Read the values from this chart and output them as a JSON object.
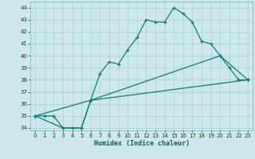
{
  "title": "",
  "xlabel": "Humidex (Indice chaleur)",
  "background_color": "#cce8ea",
  "grid_color": "#aacfd2",
  "line_color": "#1a7872",
  "ylim": [
    33.8,
    44.5
  ],
  "xlim": [
    -0.5,
    23.5
  ],
  "yticks": [
    34,
    35,
    36,
    37,
    38,
    39,
    40,
    41,
    42,
    43,
    44
  ],
  "xticks": [
    0,
    1,
    2,
    3,
    4,
    5,
    6,
    7,
    8,
    9,
    10,
    11,
    12,
    13,
    14,
    15,
    16,
    17,
    18,
    19,
    20,
    21,
    22,
    23
  ],
  "line1_x": [
    0,
    1,
    2,
    3,
    4,
    5,
    6,
    7,
    8,
    9,
    10,
    11,
    12,
    13,
    14,
    15,
    16,
    17,
    18,
    19,
    20,
    21,
    22,
    23
  ],
  "line1_y": [
    35,
    35,
    35,
    34,
    34,
    34,
    36.3,
    38.5,
    39.5,
    39.3,
    40.5,
    41.5,
    43,
    42.8,
    42.8,
    44,
    43.5,
    42.8,
    41.2,
    41.0,
    40.0,
    39.0,
    38.0,
    38.0
  ],
  "line2_x": [
    0,
    6,
    20,
    23
  ],
  "line2_y": [
    35,
    36.3,
    40.0,
    38.0
  ],
  "line3_x": [
    0,
    3,
    5,
    6,
    23
  ],
  "line3_y": [
    35,
    34,
    34,
    36.3,
    38.0
  ],
  "figsize": [
    3.2,
    2.0
  ],
  "dpi": 100
}
